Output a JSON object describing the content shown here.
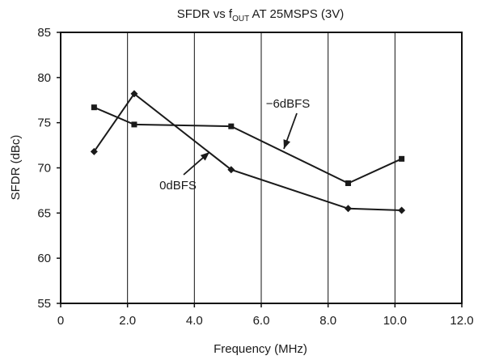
{
  "chart_data": {
    "type": "line",
    "title": "SFDR vs f",
    "title_subscript": "OUT",
    "title_suffix": " AT 25MSPS (3V)",
    "xlabel": "Frequency (MHz)",
    "ylabel": "SFDR (dBc)",
    "xlim": [
      0,
      12
    ],
    "ylim": [
      55,
      85
    ],
    "xticks": [
      0,
      2,
      4,
      6,
      8,
      10,
      12
    ],
    "xtick_labels": [
      "0",
      "2.0",
      "4.0",
      "6.0",
      "8.0",
      "10.0",
      "12.0"
    ],
    "yticks": [
      55,
      60,
      65,
      70,
      75,
      80,
      85
    ],
    "ytick_labels": [
      "55",
      "60",
      "65",
      "70",
      "75",
      "80",
      "85"
    ],
    "grid": "vertical",
    "legend": "none",
    "series": [
      {
        "name": "0dBFS",
        "marker": "diamond",
        "x": [
          1.0,
          2.2,
          5.1,
          8.6,
          10.2
        ],
        "y": [
          71.8,
          78.2,
          69.8,
          65.5,
          65.3
        ]
      },
      {
        "name": "−6dBFS",
        "marker": "square",
        "x": [
          1.0,
          2.2,
          5.1,
          8.6,
          10.2
        ],
        "y": [
          76.7,
          74.8,
          74.6,
          68.3,
          71.0
        ]
      }
    ]
  }
}
